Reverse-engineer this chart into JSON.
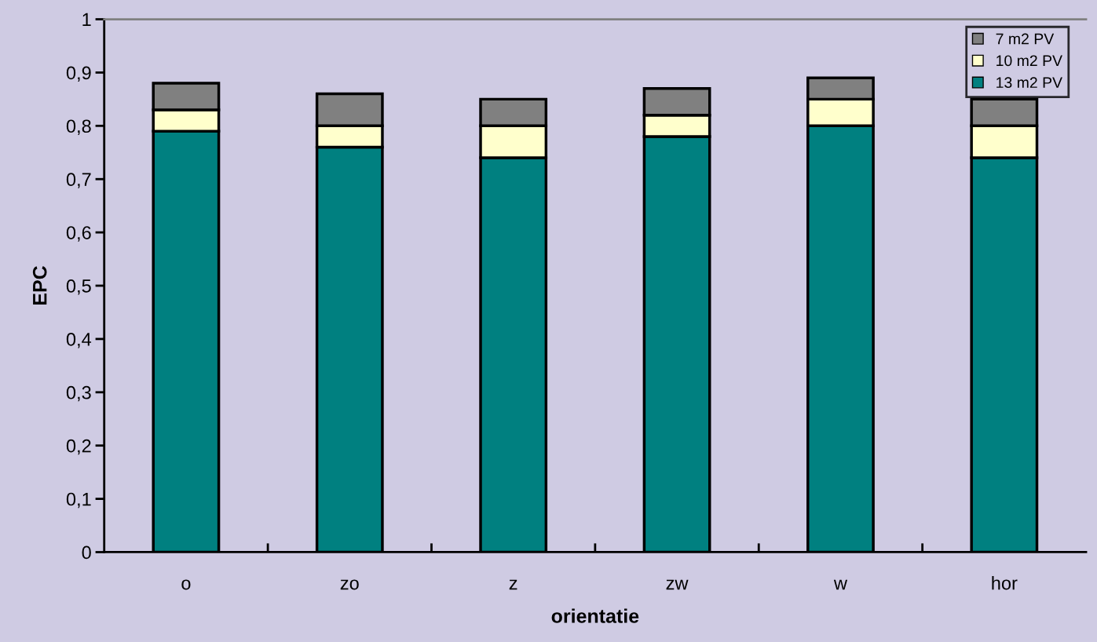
{
  "chart_data": {
    "type": "bar",
    "stacked": true,
    "xlabel": "orientatie",
    "ylabel": "EPC",
    "categories": [
      "o",
      "zo",
      "z",
      "zw",
      "w",
      "hor"
    ],
    "series": [
      {
        "name": "13 m2 PV",
        "color": "#008080",
        "values": [
          0.79,
          0.76,
          0.74,
          0.78,
          0.8,
          0.74
        ]
      },
      {
        "name": "10 m2 PV",
        "color": "#ffffcc",
        "values": [
          0.04,
          0.04,
          0.06,
          0.04,
          0.05,
          0.06
        ]
      },
      {
        "name": "7 m2 PV",
        "color": "#808080",
        "values": [
          0.05,
          0.06,
          0.05,
          0.05,
          0.04,
          0.05
        ]
      }
    ],
    "ylim": [
      0,
      1
    ],
    "yticks": [
      {
        "value": 0,
        "label": "0"
      },
      {
        "value": 0.1,
        "label": "0,1"
      },
      {
        "value": 0.2,
        "label": "0,2"
      },
      {
        "value": 0.3,
        "label": "0,3"
      },
      {
        "value": 0.4,
        "label": "0,4"
      },
      {
        "value": 0.5,
        "label": "0,5"
      },
      {
        "value": 0.6,
        "label": "0,6"
      },
      {
        "value": 0.7,
        "label": "0,7"
      },
      {
        "value": 0.8,
        "label": "0,8"
      },
      {
        "value": 0.9,
        "label": "0,9"
      },
      {
        "value": 1,
        "label": "1"
      }
    ],
    "grid": false,
    "legend": "top right"
  }
}
